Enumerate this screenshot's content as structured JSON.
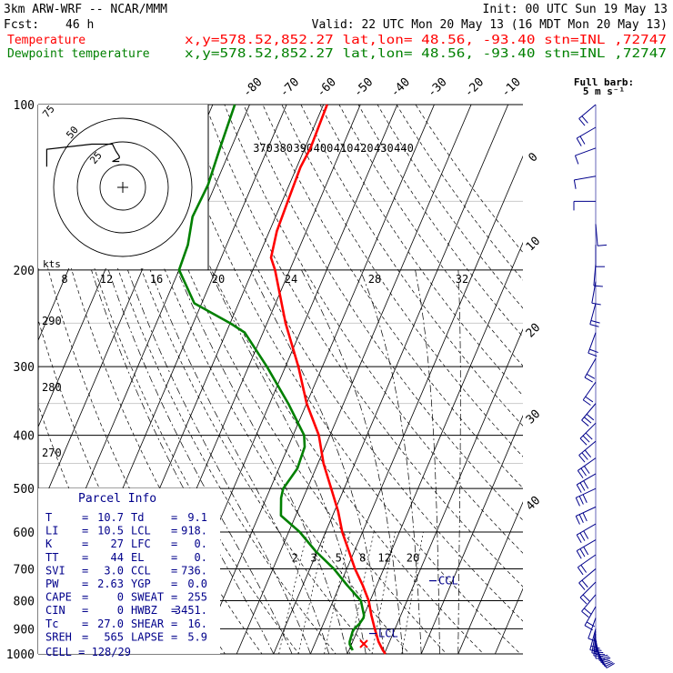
{
  "header": {
    "model": "3km ARW-WRF -- NCAR/MMM",
    "init": "Init: 00 UTC Sun 19 May 13",
    "fcst_label": "Fcst:",
    "fcst_value": "46 h",
    "valid": "Valid: 22 UTC Mon 20 May 13 (16 MDT Mon 20 May 13)",
    "temp_legend": "Temperature",
    "temp_info": "x,y=578.52,852.27   lat,lon= 48.56, -93.40  stn=INL ,72747",
    "dew_legend": "Dewpoint temperature",
    "dew_info": "x,y=578.52,852.27   lat,lon= 48.56, -93.40  stn=INL ,72747",
    "colors": {
      "temp": "#ff0000",
      "dew": "#008000",
      "barb": "#00008b",
      "info": "#00008b"
    }
  },
  "wind_barb_header": {
    "line1": "Full barb:",
    "line2": "5 m s⁻¹"
  },
  "chart_data": {
    "type": "skew-t log-p sounding",
    "y_axis_pressure_hpa": [
      100,
      200,
      300,
      400,
      500,
      600,
      700,
      800,
      900,
      1000
    ],
    "isotherm_labels_c": [
      -80,
      -70,
      -60,
      -50,
      -40,
      -30,
      -20,
      -10,
      0,
      10,
      20,
      30,
      40
    ],
    "theta_labels_k": [
      370,
      380,
      390,
      400,
      410,
      420,
      430,
      440
    ],
    "theta_lower_labels_k": [
      290,
      280,
      270
    ],
    "mixing_ratio_labels": [
      "2",
      "3",
      "5",
      "8",
      "12",
      "20"
    ],
    "hodograph": {
      "units_label": "kts",
      "speed_ticks": [
        "8",
        "12",
        "16",
        "20",
        "24",
        "28",
        "32"
      ],
      "ring_labels": [
        "75",
        "50",
        "25"
      ],
      "track_uv": [
        [
          -22,
          12
        ],
        [
          -22,
          22
        ],
        [
          -9,
          25
        ],
        [
          -3,
          25
        ],
        [
          -2,
          21
        ],
        [
          -1,
          18
        ],
        [
          -1,
          17
        ],
        [
          -2,
          16
        ],
        [
          -3,
          15
        ],
        [
          -1,
          15
        ]
      ]
    },
    "series": [
      {
        "name": "Temperature",
        "color": "#ff0000",
        "points": [
          [
            1000,
            20.3
          ],
          [
            985,
            19.2
          ],
          [
            950,
            17.0
          ],
          [
            900,
            14.5
          ],
          [
            850,
            12.0
          ],
          [
            800,
            9.6
          ],
          [
            750,
            6.2
          ],
          [
            700,
            2.2
          ],
          [
            650,
            -1.5
          ],
          [
            600,
            -5.5
          ],
          [
            550,
            -9.0
          ],
          [
            500,
            -13.5
          ],
          [
            450,
            -18.5
          ],
          [
            400,
            -23.0
          ],
          [
            350,
            -30.0
          ],
          [
            300,
            -36.5
          ],
          [
            250,
            -45.0
          ],
          [
            200,
            -54.0
          ],
          [
            190,
            -56.5
          ],
          [
            170,
            -58.0
          ],
          [
            150,
            -58.5
          ],
          [
            130,
            -59.0
          ],
          [
            120,
            -58.5
          ],
          [
            100,
            -59.0
          ]
        ]
      },
      {
        "name": "Dewpoint temperature",
        "color": "#008000",
        "points": [
          [
            985,
            11.0
          ],
          [
            960,
            9.5
          ],
          [
            950,
            9.2
          ],
          [
            930,
            9.0
          ],
          [
            910,
            8.8
          ],
          [
            900,
            9.0
          ],
          [
            880,
            9.8
          ],
          [
            860,
            10.2
          ],
          [
            850,
            10.0
          ],
          [
            800,
            7.5
          ],
          [
            750,
            2.0
          ],
          [
            700,
            -3.5
          ],
          [
            650,
            -10.5
          ],
          [
            600,
            -17.0
          ],
          [
            560,
            -24.0
          ],
          [
            520,
            -26.0
          ],
          [
            500,
            -26.5
          ],
          [
            460,
            -25.0
          ],
          [
            420,
            -25.5
          ],
          [
            400,
            -27.0
          ],
          [
            350,
            -35.0
          ],
          [
            300,
            -45.0
          ],
          [
            260,
            -55.0
          ],
          [
            250,
            -60.0
          ],
          [
            230,
            -72.0
          ],
          [
            200,
            -80.0
          ],
          [
            180,
            -80.5
          ],
          [
            160,
            -82.5
          ],
          [
            140,
            -82.0
          ],
          [
            120,
            -83.0
          ],
          [
            100,
            -84.0
          ]
        ]
      }
    ],
    "annotations": [
      {
        "text": "CCL",
        "p": 736
      },
      {
        "text": "LCL",
        "p": 918
      }
    ],
    "wind_barbs": [
      {
        "p": 980,
        "dir": 150,
        "spd": 4
      },
      {
        "p": 970,
        "dir": 155,
        "spd": 6
      },
      {
        "p": 960,
        "dir": 160,
        "spd": 8
      },
      {
        "p": 950,
        "dir": 165,
        "spd": 9
      },
      {
        "p": 940,
        "dir": 170,
        "spd": 10
      },
      {
        "p": 930,
        "dir": 180,
        "spd": 10
      },
      {
        "p": 920,
        "dir": 185,
        "spd": 10
      },
      {
        "p": 910,
        "dir": 190,
        "spd": 9
      },
      {
        "p": 900,
        "dir": 195,
        "spd": 8
      },
      {
        "p": 860,
        "dir": 200,
        "spd": 7
      },
      {
        "p": 820,
        "dir": 210,
        "spd": 8
      },
      {
        "p": 780,
        "dir": 220,
        "spd": 9
      },
      {
        "p": 740,
        "dir": 225,
        "spd": 10
      },
      {
        "p": 700,
        "dir": 230,
        "spd": 11
      },
      {
        "p": 660,
        "dir": 235,
        "spd": 12
      },
      {
        "p": 620,
        "dir": 240,
        "spd": 13
      },
      {
        "p": 580,
        "dir": 240,
        "spd": 14
      },
      {
        "p": 540,
        "dir": 245,
        "spd": 15
      },
      {
        "p": 500,
        "dir": 245,
        "spd": 15
      },
      {
        "p": 470,
        "dir": 240,
        "spd": 16
      },
      {
        "p": 440,
        "dir": 235,
        "spd": 16
      },
      {
        "p": 410,
        "dir": 230,
        "spd": 15
      },
      {
        "p": 380,
        "dir": 225,
        "spd": 14
      },
      {
        "p": 350,
        "dir": 220,
        "spd": 13
      },
      {
        "p": 320,
        "dir": 215,
        "spd": 12
      },
      {
        "p": 290,
        "dir": 210,
        "spd": 11
      },
      {
        "p": 260,
        "dir": 200,
        "spd": 10
      },
      {
        "p": 230,
        "dir": 195,
        "spd": 8
      },
      {
        "p": 210,
        "dir": 190,
        "spd": 6
      },
      {
        "p": 195,
        "dir": 185,
        "spd": 5
      },
      {
        "p": 180,
        "dir": 180,
        "spd": 4
      },
      {
        "p": 165,
        "dir": 175,
        "spd": 3
      },
      {
        "p": 150,
        "dir": 270,
        "spd": 5
      },
      {
        "p": 135,
        "dir": 260,
        "spd": 6
      },
      {
        "p": 120,
        "dir": 250,
        "spd": 7
      },
      {
        "p": 110,
        "dir": 240,
        "spd": 8
      },
      {
        "p": 100,
        "dir": 230,
        "spd": 8
      }
    ]
  },
  "parcel_info": {
    "title": "Parcel Info",
    "rows": [
      {
        "k1": "T",
        "v1": "10.7",
        "k2": "Td",
        "v2": "9.1"
      },
      {
        "k1": "LI",
        "v1": "10.5",
        "k2": "LCL",
        "v2": "918."
      },
      {
        "k1": "K",
        "v1": "27",
        "k2": "LFC",
        "v2": "0."
      },
      {
        "k1": "TT",
        "v1": "44",
        "k2": "EL",
        "v2": "0."
      },
      {
        "k1": "SVI",
        "v1": "3.0",
        "k2": "CCL",
        "v2": "736."
      },
      {
        "k1": "PW",
        "v1": "2.63",
        "k2": "YGP",
        "v2": "0.0"
      },
      {
        "k1": "CAPE",
        "v1": "0",
        "k2": "SWEAT",
        "v2": "255"
      },
      {
        "k1": "CIN",
        "v1": "0",
        "k2": "HWBZ",
        "v2": "3451."
      },
      {
        "k1": "Tc",
        "v1": "27.0",
        "k2": "SHEAR",
        "v2": "16."
      },
      {
        "k1": "SREH",
        "v1": "565",
        "k2": "LAPSE",
        "v2": "5.9"
      }
    ],
    "cell": "CELL = 128/29"
  }
}
